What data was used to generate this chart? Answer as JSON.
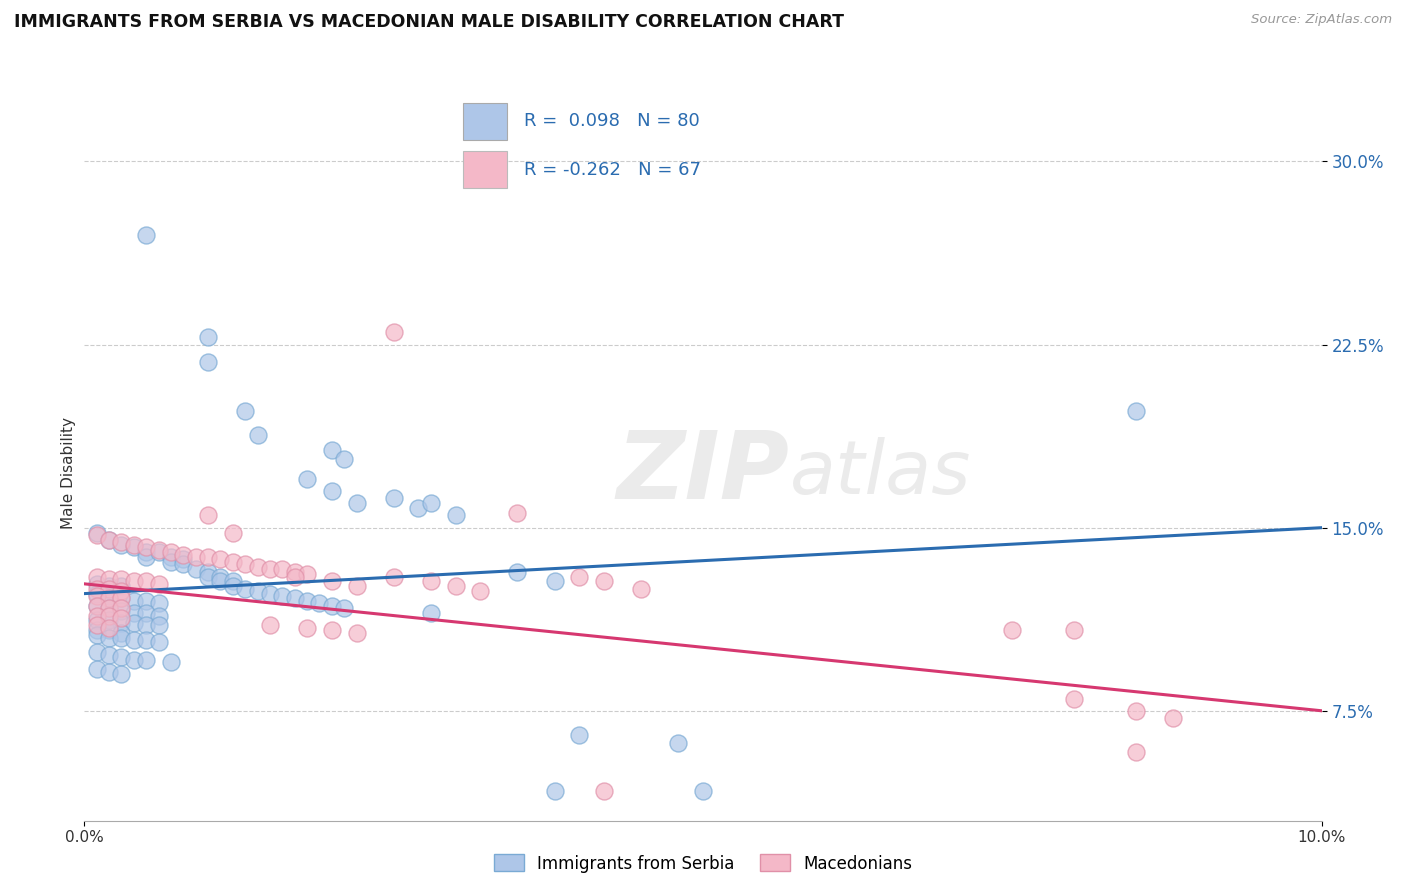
{
  "title": "IMMIGRANTS FROM SERBIA VS MACEDONIAN MALE DISABILITY CORRELATION CHART",
  "source": "Source: ZipAtlas.com",
  "ylabel": "Male Disability",
  "xlim": [
    0.0,
    0.1
  ],
  "ylim": [
    0.03,
    0.315
  ],
  "yticks": [
    0.075,
    0.15,
    0.225,
    0.3
  ],
  "ytick_labels": [
    "7.5%",
    "15.0%",
    "22.5%",
    "30.0%"
  ],
  "serbia_color": "#aec6e8",
  "serbia_edge_color": "#7aaad4",
  "serbia_line_color": "#2b6cb0",
  "macedonian_color": "#f4b8c8",
  "macedonian_edge_color": "#e090a8",
  "macedonian_line_color": "#d63870",
  "watermark": "ZIPatlas",
  "serbia_line_x0": 0.0,
  "serbia_line_y0": 0.123,
  "serbia_line_x1": 0.1,
  "serbia_line_y1": 0.15,
  "mac_line_x0": 0.0,
  "mac_line_y0": 0.127,
  "mac_line_x1": 0.1,
  "mac_line_y1": 0.075,
  "serbia_points": [
    [
      0.005,
      0.27
    ],
    [
      0.01,
      0.228
    ],
    [
      0.01,
      0.218
    ],
    [
      0.013,
      0.198
    ],
    [
      0.014,
      0.188
    ],
    [
      0.02,
      0.182
    ],
    [
      0.021,
      0.178
    ],
    [
      0.018,
      0.17
    ],
    [
      0.02,
      0.165
    ],
    [
      0.022,
      0.16
    ],
    [
      0.025,
      0.162
    ],
    [
      0.027,
      0.158
    ],
    [
      0.028,
      0.16
    ],
    [
      0.03,
      0.155
    ],
    [
      0.001,
      0.148
    ],
    [
      0.002,
      0.145
    ],
    [
      0.003,
      0.143
    ],
    [
      0.004,
      0.142
    ],
    [
      0.005,
      0.14
    ],
    [
      0.005,
      0.138
    ],
    [
      0.006,
      0.14
    ],
    [
      0.007,
      0.138
    ],
    [
      0.007,
      0.136
    ],
    [
      0.008,
      0.137
    ],
    [
      0.008,
      0.135
    ],
    [
      0.009,
      0.133
    ],
    [
      0.01,
      0.132
    ],
    [
      0.01,
      0.13
    ],
    [
      0.011,
      0.13
    ],
    [
      0.011,
      0.128
    ],
    [
      0.012,
      0.128
    ],
    [
      0.012,
      0.126
    ],
    [
      0.013,
      0.125
    ],
    [
      0.014,
      0.124
    ],
    [
      0.015,
      0.123
    ],
    [
      0.016,
      0.122
    ],
    [
      0.017,
      0.121
    ],
    [
      0.018,
      0.12
    ],
    [
      0.019,
      0.119
    ],
    [
      0.02,
      0.118
    ],
    [
      0.021,
      0.117
    ],
    [
      0.001,
      0.127
    ],
    [
      0.002,
      0.126
    ],
    [
      0.003,
      0.126
    ],
    [
      0.001,
      0.123
    ],
    [
      0.002,
      0.122
    ],
    [
      0.003,
      0.121
    ],
    [
      0.004,
      0.12
    ],
    [
      0.005,
      0.12
    ],
    [
      0.006,
      0.119
    ],
    [
      0.001,
      0.118
    ],
    [
      0.002,
      0.117
    ],
    [
      0.003,
      0.116
    ],
    [
      0.004,
      0.115
    ],
    [
      0.005,
      0.115
    ],
    [
      0.006,
      0.114
    ],
    [
      0.001,
      0.112
    ],
    [
      0.002,
      0.112
    ],
    [
      0.003,
      0.111
    ],
    [
      0.004,
      0.111
    ],
    [
      0.005,
      0.11
    ],
    [
      0.006,
      0.11
    ],
    [
      0.001,
      0.108
    ],
    [
      0.002,
      0.108
    ],
    [
      0.003,
      0.107
    ],
    [
      0.001,
      0.106
    ],
    [
      0.002,
      0.105
    ],
    [
      0.003,
      0.105
    ],
    [
      0.004,
      0.104
    ],
    [
      0.005,
      0.104
    ],
    [
      0.006,
      0.103
    ],
    [
      0.001,
      0.099
    ],
    [
      0.002,
      0.098
    ],
    [
      0.003,
      0.097
    ],
    [
      0.004,
      0.096
    ],
    [
      0.005,
      0.096
    ],
    [
      0.007,
      0.095
    ],
    [
      0.001,
      0.092
    ],
    [
      0.002,
      0.091
    ],
    [
      0.003,
      0.09
    ],
    [
      0.085,
      0.198
    ],
    [
      0.035,
      0.132
    ],
    [
      0.038,
      0.128
    ],
    [
      0.028,
      0.115
    ],
    [
      0.04,
      0.065
    ],
    [
      0.048,
      0.062
    ],
    [
      0.05,
      0.042
    ],
    [
      0.038,
      0.042
    ]
  ],
  "macedonian_points": [
    [
      0.025,
      0.23
    ],
    [
      0.035,
      0.156
    ],
    [
      0.001,
      0.147
    ],
    [
      0.002,
      0.145
    ],
    [
      0.003,
      0.144
    ],
    [
      0.004,
      0.143
    ],
    [
      0.005,
      0.142
    ],
    [
      0.006,
      0.141
    ],
    [
      0.007,
      0.14
    ],
    [
      0.008,
      0.139
    ],
    [
      0.009,
      0.138
    ],
    [
      0.01,
      0.138
    ],
    [
      0.011,
      0.137
    ],
    [
      0.012,
      0.136
    ],
    [
      0.013,
      0.135
    ],
    [
      0.014,
      0.134
    ],
    [
      0.015,
      0.133
    ],
    [
      0.016,
      0.133
    ],
    [
      0.017,
      0.132
    ],
    [
      0.018,
      0.131
    ],
    [
      0.001,
      0.13
    ],
    [
      0.002,
      0.129
    ],
    [
      0.003,
      0.129
    ],
    [
      0.004,
      0.128
    ],
    [
      0.005,
      0.128
    ],
    [
      0.006,
      0.127
    ],
    [
      0.001,
      0.125
    ],
    [
      0.002,
      0.125
    ],
    [
      0.003,
      0.124
    ],
    [
      0.001,
      0.122
    ],
    [
      0.002,
      0.121
    ],
    [
      0.003,
      0.121
    ],
    [
      0.001,
      0.118
    ],
    [
      0.002,
      0.117
    ],
    [
      0.003,
      0.117
    ],
    [
      0.001,
      0.114
    ],
    [
      0.002,
      0.114
    ],
    [
      0.003,
      0.113
    ],
    [
      0.01,
      0.155
    ],
    [
      0.012,
      0.148
    ],
    [
      0.017,
      0.13
    ],
    [
      0.02,
      0.128
    ],
    [
      0.022,
      0.126
    ],
    [
      0.025,
      0.13
    ],
    [
      0.028,
      0.128
    ],
    [
      0.03,
      0.126
    ],
    [
      0.032,
      0.124
    ],
    [
      0.04,
      0.13
    ],
    [
      0.042,
      0.128
    ],
    [
      0.045,
      0.125
    ],
    [
      0.001,
      0.11
    ],
    [
      0.002,
      0.109
    ],
    [
      0.02,
      0.108
    ],
    [
      0.022,
      0.107
    ],
    [
      0.075,
      0.108
    ],
    [
      0.08,
      0.108
    ],
    [
      0.08,
      0.08
    ],
    [
      0.085,
      0.075
    ],
    [
      0.088,
      0.072
    ],
    [
      0.085,
      0.058
    ],
    [
      0.042,
      0.042
    ],
    [
      0.015,
      0.11
    ],
    [
      0.018,
      0.109
    ]
  ]
}
